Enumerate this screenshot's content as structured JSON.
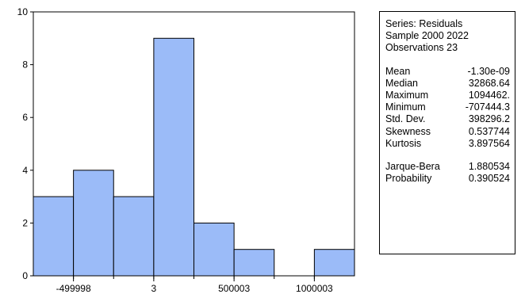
{
  "chart_data": {
    "type": "bar",
    "subtype": "histogram",
    "bins": [
      {
        "lower": -750000,
        "upper": -500000,
        "count": 3
      },
      {
        "lower": -500000,
        "upper": -250000,
        "count": 4
      },
      {
        "lower": -250000,
        "upper": 0,
        "count": 3
      },
      {
        "lower": 0,
        "upper": 250000,
        "count": 9
      },
      {
        "lower": 250000,
        "upper": 500000,
        "count": 2
      },
      {
        "lower": 500000,
        "upper": 750000,
        "count": 1
      },
      {
        "lower": 750000,
        "upper": 1000000,
        "count": 0
      },
      {
        "lower": 1000000,
        "upper": 1250000,
        "count": 1
      }
    ],
    "x_tick_labels": [
      {
        "value": -499998,
        "label": "-499998"
      },
      {
        "value": 3,
        "label": "3"
      },
      {
        "value": 500003,
        "label": "500003"
      },
      {
        "value": 1000003,
        "label": "1000003"
      }
    ],
    "y_ticks": [
      0,
      2,
      4,
      6,
      8,
      10
    ],
    "ylim": [
      0,
      10
    ],
    "xlim": [
      -750000,
      1250000
    ],
    "bar_color": "#9bbbf8",
    "bar_edge_color": "#000000",
    "grid": false,
    "title": "",
    "xlabel": "",
    "ylabel": ""
  },
  "stats": {
    "header": [
      "Series: Residuals",
      "Sample 2000 2022",
      "Observations 23"
    ],
    "descriptive": [
      {
        "label": "Mean",
        "value": "-1.30e-09"
      },
      {
        "label": "Median",
        "value": "32868.64"
      },
      {
        "label": "Maximum",
        "value": "1094462."
      },
      {
        "label": "Minimum",
        "value": "-707444.3"
      },
      {
        "label": "Std. Dev.",
        "value": "398296.2"
      },
      {
        "label": "Skewness",
        "value": "0.537744"
      },
      {
        "label": "Kurtosis",
        "value": "3.897564"
      }
    ],
    "tests": [
      {
        "label": "Jarque-Bera",
        "value": "1.880534"
      },
      {
        "label": "Probability",
        "value": "0.390524"
      }
    ]
  }
}
